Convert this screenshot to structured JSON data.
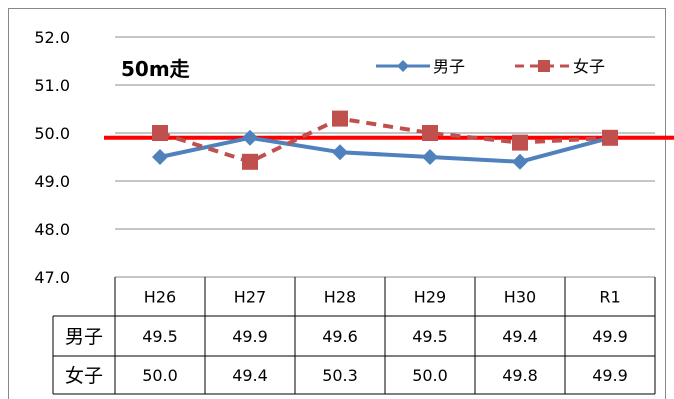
{
  "chart_data": {
    "type": "line",
    "title": "50m走",
    "categories": [
      "H26",
      "H27",
      "H28",
      "H29",
      "H30",
      "R1"
    ],
    "ylim": [
      47.0,
      52.0
    ],
    "yticks": [
      "47.0",
      "48.0",
      "49.0",
      "50.0",
      "51.0",
      "52.0"
    ],
    "grid": true,
    "legend_position": "top-right",
    "reference_line": {
      "value": 49.9,
      "color": "#ff0000"
    },
    "series": [
      {
        "name": "男子",
        "values": [
          49.5,
          49.9,
          49.6,
          49.5,
          49.4,
          49.9
        ],
        "display": [
          "49.5",
          "49.9",
          "49.6",
          "49.5",
          "49.4",
          "49.9"
        ],
        "color": "#4f81bd",
        "marker": "diamond",
        "dash": "solid"
      },
      {
        "name": "女子",
        "values": [
          50.0,
          49.4,
          50.3,
          50.0,
          49.8,
          49.9
        ],
        "display": [
          "50.0",
          "49.4",
          "50.3",
          "50.0",
          "49.8",
          "49.9"
        ],
        "color": "#c0504d",
        "marker": "square",
        "dash": "dashed"
      }
    ]
  }
}
